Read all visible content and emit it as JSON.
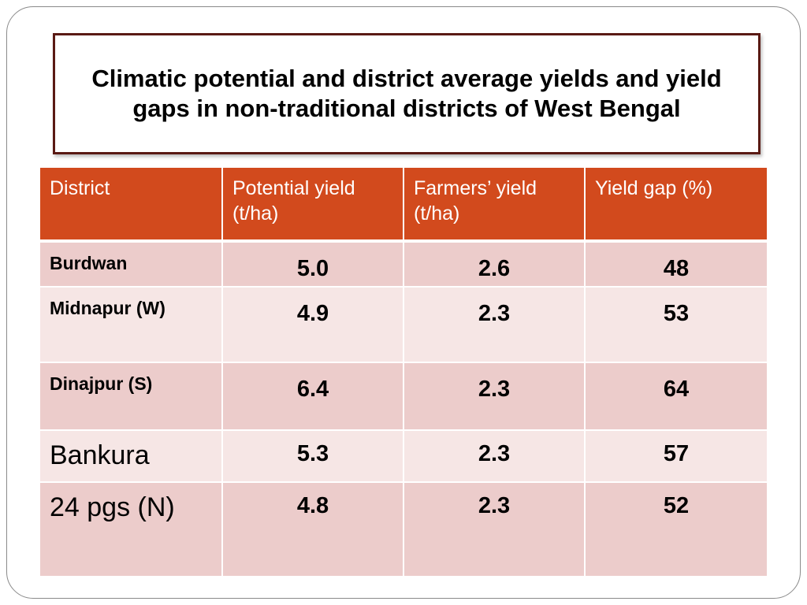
{
  "title": "Climatic potential and district average yields and yield gaps in non-traditional districts of West Bengal",
  "table": {
    "headers": [
      "District",
      "Potential yield (t/ha)",
      "Farmers’ yield (t/ha)",
      "Yield gap (%)"
    ],
    "rows": [
      {
        "district": "Burdwan",
        "potential": "5.0",
        "farmers": "2.6",
        "gap": "48"
      },
      {
        "district": "Midnapur (W)",
        "potential": "4.9",
        "farmers": "2.3",
        "gap": "53"
      },
      {
        "district": "Dinajpur  (S)",
        "potential": "6.4",
        "farmers": "2.3",
        "gap": "64"
      },
      {
        "district": "Bankura",
        "potential": "5.3",
        "farmers": "2.3",
        "gap": "57"
      },
      {
        "district": "24 pgs (N)",
        "potential": "4.8",
        "farmers": "2.3",
        "gap": "52"
      }
    ]
  },
  "colors": {
    "header_bg": "#d24a1d",
    "row_dark": "#eccccb",
    "row_light": "#f6e6e5",
    "title_border": "#5a1a14"
  }
}
